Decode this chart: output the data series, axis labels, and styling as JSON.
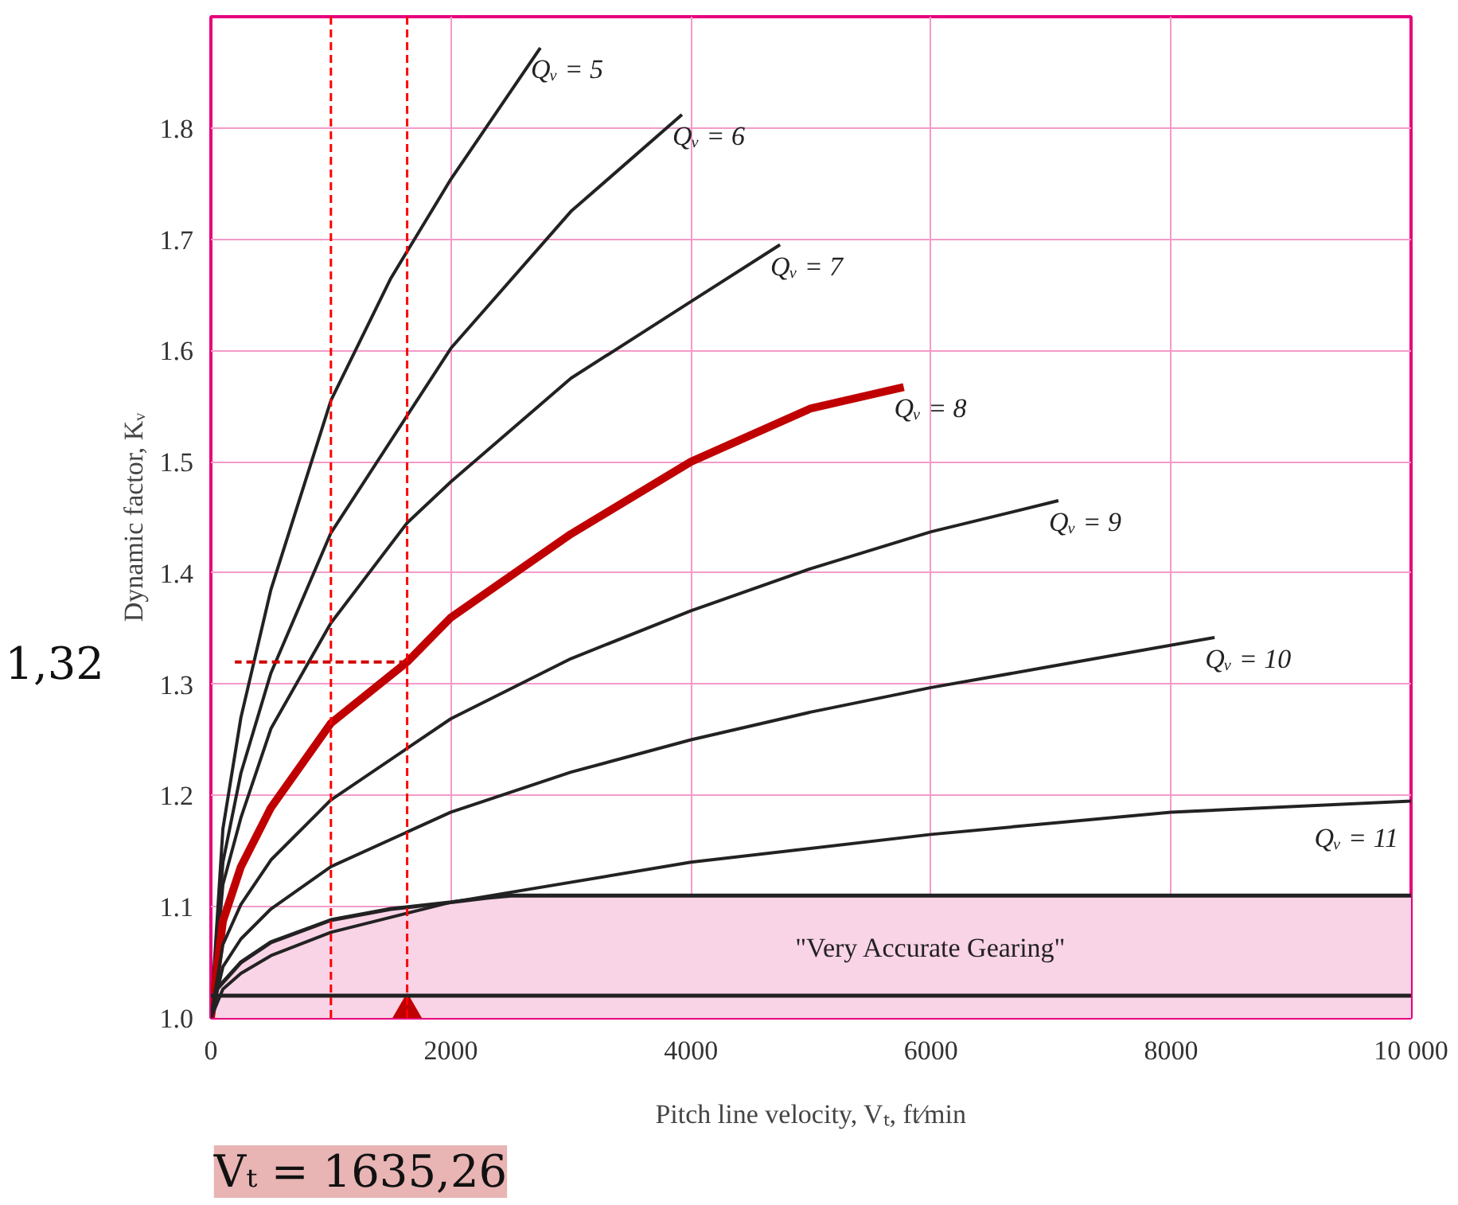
{
  "chart_data": {
    "type": "line",
    "xlabel": "Pitch line velocity, Vₜ, ft∕min",
    "ylabel": "Dynamic factor, Kᵥ",
    "xlim": [
      0,
      10000
    ],
    "ylim": [
      1.0,
      1.9
    ],
    "xticks": [
      0,
      2000,
      4000,
      6000,
      8000,
      {
        "value": 10000,
        "label": "10 000"
      }
    ],
    "yticks": [
      {
        "value": 1.0,
        "label": "1.0"
      },
      {
        "value": 1.1,
        "label": "1.1"
      },
      {
        "value": 1.2,
        "label": "1.2"
      },
      {
        "value": 1.3,
        "label": "1.3"
      },
      {
        "value": 1.4,
        "label": "1.4"
      },
      {
        "value": 1.5,
        "label": "1.5"
      },
      {
        "value": 1.6,
        "label": "1.6"
      },
      {
        "value": 1.7,
        "label": "1.7"
      },
      {
        "value": 1.8,
        "label": "1.8"
      }
    ],
    "grid": true,
    "series": [
      {
        "type": "area",
        "color": "#f9d3e6",
        "x": [
          0,
          250,
          500,
          1000,
          1500,
          2000,
          2300,
          2500,
          10000
        ],
        "values": [
          1.02,
          1.05,
          1.068,
          1.088,
          1.098,
          1.104,
          1.108,
          1.11,
          1.11
        ]
      },
      {
        "name": "Qᵥ = 5",
        "color": "#222222",
        "x": [
          0,
          100,
          250,
          500,
          1000,
          1500,
          2000,
          2745
        ],
        "values": [
          1.0,
          1.17,
          1.27,
          1.385,
          1.555,
          1.665,
          1.754,
          1.872
        ]
      },
      {
        "name": "Qᵥ = 6",
        "color": "#222222",
        "x": [
          0,
          100,
          250,
          500,
          1000,
          2000,
          3000,
          3925
        ],
        "values": [
          1.0,
          1.14,
          1.22,
          1.31,
          1.436,
          1.602,
          1.725,
          1.812
        ]
      },
      {
        "name": "Qᵥ = 7",
        "color": "#222222",
        "x": [
          0,
          100,
          250,
          500,
          1000,
          1635,
          2000,
          3000,
          4000,
          4742
        ],
        "values": [
          1.0,
          1.12,
          1.18,
          1.26,
          1.355,
          1.445,
          1.482,
          1.575,
          1.644,
          1.695
        ]
      },
      {
        "name": "Qᵥ = 8",
        "color": "#c00000",
        "x": [
          0,
          100,
          250,
          500,
          1000,
          1635.26,
          2000,
          3000,
          4000,
          5000,
          5773
        ],
        "values": [
          1.0,
          1.087,
          1.136,
          1.189,
          1.265,
          1.32,
          1.36,
          1.435,
          1.5,
          1.548,
          1.567
        ]
      },
      {
        "name": "Qᵥ = 9",
        "color": "#222222",
        "x": [
          0,
          100,
          250,
          500,
          1000,
          2000,
          3000,
          4000,
          5000,
          6000,
          7062
        ],
        "values": [
          1.0,
          1.066,
          1.102,
          1.142,
          1.196,
          1.269,
          1.323,
          1.366,
          1.404,
          1.437,
          1.465
        ]
      },
      {
        "name": "Qᵥ = 10",
        "color": "#222222",
        "x": [
          0,
          100,
          250,
          500,
          1000,
          2000,
          3000,
          4000,
          5000,
          6000,
          7000,
          8363
        ],
        "values": [
          1.0,
          1.046,
          1.071,
          1.098,
          1.136,
          1.185,
          1.221,
          1.25,
          1.275,
          1.297,
          1.316,
          1.342
        ]
      },
      {
        "name": "Qᵥ = 11",
        "color": "#222222",
        "x": [
          0,
          100,
          250,
          500,
          1000,
          2000,
          4000,
          6000,
          8000,
          10000
        ],
        "values": [
          1.0,
          1.026,
          1.04,
          1.056,
          1.077,
          1.104,
          1.14,
          1.165,
          1.185,
          1.195
        ]
      },
      {
        "type": "line",
        "line_style": "dashed",
        "color": "#d00000",
        "x": [
          1635.26,
          200
        ],
        "values": [
          1.32,
          1.32
        ]
      },
      {
        "type": "scatter",
        "marker": "triangle",
        "color": "#c00000",
        "x": [
          1635.26
        ],
        "values": [
          1.0
        ]
      }
    ],
    "ref_lines": [
      {
        "axis": "y",
        "value": 1.02,
        "color": "#222222",
        "line_style": "solid"
      },
      {
        "axis": "x",
        "value": 1000,
        "color": "#ff0000",
        "line_style": "dashed"
      },
      {
        "axis": "x",
        "value": 1635.26,
        "color": "#ff0000",
        "line_style": "dashed"
      }
    ],
    "annotations": [
      "\"Very Accurate Gearing\"",
      "1,32",
      {
        "text": "Vₜ = 1635,26",
        "x": 1635.26,
        "y": 1.0
      }
    ]
  }
}
